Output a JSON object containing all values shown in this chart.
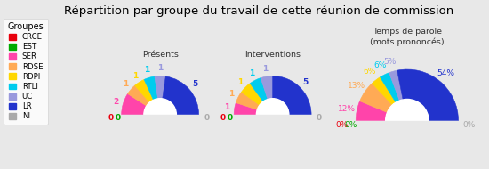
{
  "title": "Répartition par groupe du travail de cette réunion de commission",
  "groups": [
    "CRCE",
    "EST",
    "SER",
    "RDSE",
    "RDPI",
    "RTLI",
    "UC",
    "LR",
    "NI"
  ],
  "colors": [
    "#e8000d",
    "#00aa00",
    "#ff44aa",
    "#ffaa55",
    "#ffd700",
    "#00ccee",
    "#9999dd",
    "#2233cc",
    "#aaaaaa"
  ],
  "presences": [
    0,
    0,
    2,
    1,
    1,
    1,
    1,
    5,
    0
  ],
  "interventions": [
    0,
    0,
    1,
    1,
    1,
    1,
    1,
    5,
    0
  ],
  "temps_parole": [
    0,
    0,
    12,
    13,
    6,
    6,
    5,
    54,
    0
  ],
  "chart_titles": [
    "Présents",
    "Interventions",
    "Temps de parole\n(mots prononcés)"
  ],
  "background_color": "#e8e8e8",
  "title_fontsize": 9.5,
  "label_fontsize": 6.5,
  "legend_title": "Groupes"
}
